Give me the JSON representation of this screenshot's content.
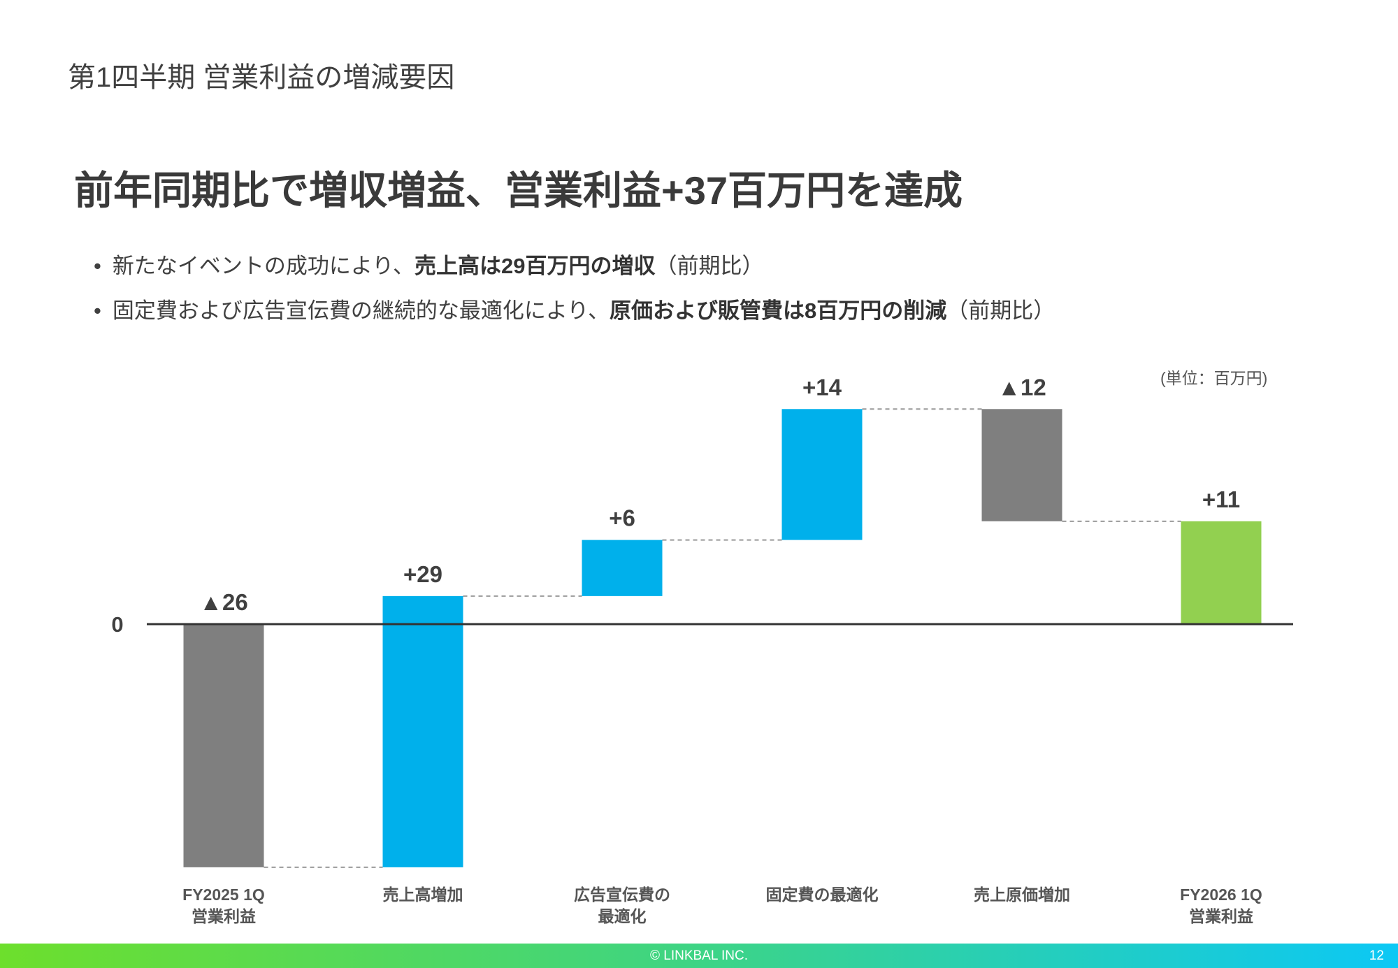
{
  "section_title": "第1四半期 営業利益の増減要因",
  "headline": "前年同期比で増収増益、営業利益+37百万円を達成",
  "bullets": [
    {
      "text": "新たなイベントの成功により、",
      "bold": "売上高は29百万円の増収",
      "suffix": "（前期比）"
    },
    {
      "text": "固定費および広告宣伝費の継続的な最適化により、",
      "bold": "原価および販管費は8百万円の削減",
      "suffix": "（前期比）"
    }
  ],
  "bullet_marker": "•",
  "unit_label": "(単位：百万円)",
  "footer": {
    "copyright": "© LINKBAL INC.",
    "page": "12"
  },
  "chart_data": {
    "type": "waterfall",
    "zero_label": "0",
    "categories": [
      "FY2025 1Q\n営業利益",
      "売上高増加",
      "広告宣伝費の\n最適化",
      "固定費の最適化",
      "売上原価増加",
      "FY2026 1Q\n営業利益"
    ],
    "values": [
      -26,
      29,
      6,
      14,
      -12,
      11
    ],
    "kinds": [
      "total",
      "delta",
      "delta",
      "delta",
      "delta",
      "total"
    ],
    "labels": [
      "▲26",
      "+29",
      "+6",
      "+14",
      "▲12",
      "+11"
    ],
    "colors": {
      "total_negative": "#7f7f7f",
      "increase": "#00b0eb",
      "decrease": "#7f7f7f",
      "total_positive": "#92d050",
      "axis": "#333333",
      "connector": "#999999"
    }
  }
}
